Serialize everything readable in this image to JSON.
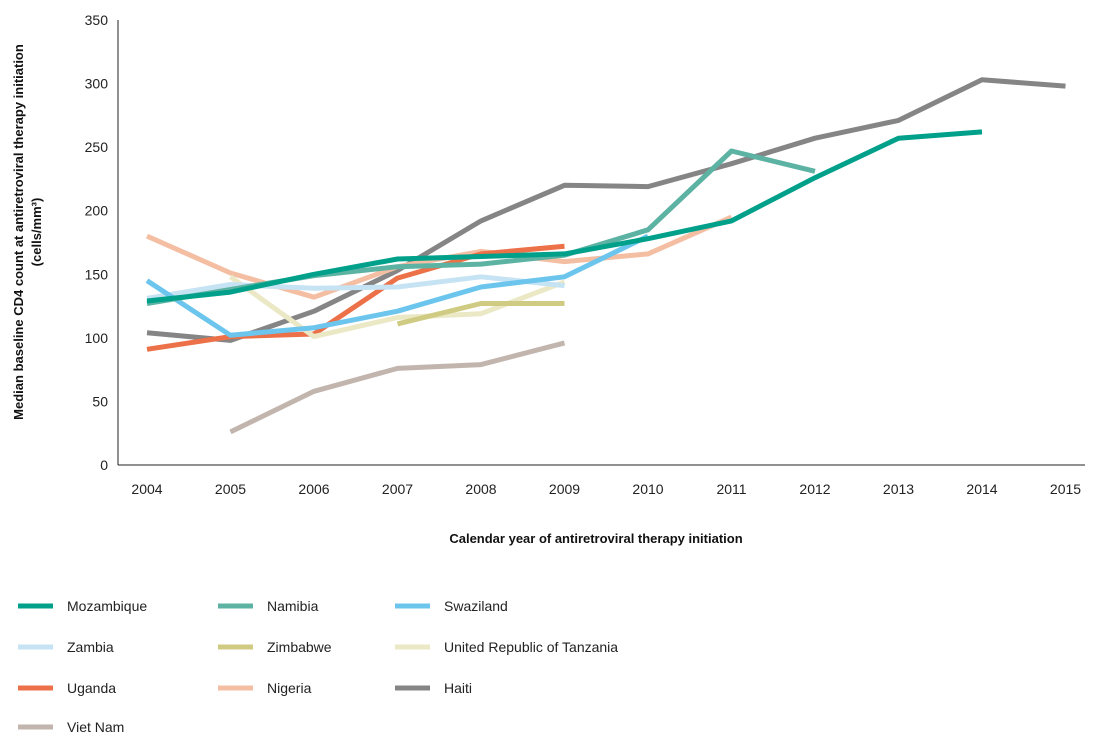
{
  "chart_data": {
    "type": "line",
    "xlabel": "Calendar year of antiretroviral therapy initiation",
    "ylabel": "Median baseline CD4 count at antiretroviral therapy initiation",
    "ylabel_unit": "(cells/mm³)",
    "xlim": [
      2004,
      2015
    ],
    "ylim": [
      0,
      350
    ],
    "x_ticks": [
      "2004",
      "2005",
      "2006",
      "2007",
      "2008",
      "2009",
      "2010",
      "2011",
      "2012",
      "2013",
      "2014",
      "2015"
    ],
    "y_ticks": [
      "0",
      "50",
      "100",
      "150",
      "200",
      "250",
      "300",
      "350"
    ],
    "grid": false,
    "legend_position": "bottom-left",
    "series": [
      {
        "name": "Mozambique",
        "color": "#00a08a",
        "points": [
          [
            2004,
            129
          ],
          [
            2005,
            136
          ],
          [
            2006,
            150
          ],
          [
            2007,
            162
          ],
          [
            2008,
            164
          ],
          [
            2009,
            166
          ],
          [
            2010,
            178
          ],
          [
            2011,
            192
          ],
          [
            2012,
            226
          ],
          [
            2013,
            257
          ],
          [
            2014,
            262
          ]
        ]
      },
      {
        "name": "Namibia",
        "color": "#5db3a3",
        "points": [
          [
            2004,
            127
          ],
          [
            2005,
            138
          ],
          [
            2006,
            149
          ],
          [
            2007,
            156
          ],
          [
            2008,
            158
          ],
          [
            2009,
            165
          ],
          [
            2010,
            185
          ],
          [
            2011,
            247
          ],
          [
            2012,
            231
          ]
        ]
      },
      {
        "name": "Swaziland",
        "color": "#6cc5ec",
        "points": [
          [
            2004,
            145
          ],
          [
            2005,
            102
          ],
          [
            2006,
            108
          ],
          [
            2007,
            121
          ],
          [
            2008,
            140
          ],
          [
            2009,
            148
          ],
          [
            2010,
            180
          ]
        ]
      },
      {
        "name": "Zambia",
        "color": "#c6e3f4",
        "points": [
          [
            2004,
            131
          ],
          [
            2005,
            142
          ],
          [
            2006,
            139
          ],
          [
            2007,
            140
          ],
          [
            2008,
            148
          ],
          [
            2009,
            141
          ]
        ]
      },
      {
        "name": "Zimbabwe",
        "color": "#d0cb82",
        "points": [
          [
            2007,
            111
          ],
          [
            2008,
            127
          ],
          [
            2009,
            127
          ]
        ]
      },
      {
        "name": "United Republic of Tanzania",
        "color": "#ebe8c5",
        "points": [
          [
            2005,
            148
          ],
          [
            2006,
            101
          ],
          [
            2007,
            116
          ],
          [
            2008,
            119
          ],
          [
            2009,
            144
          ]
        ]
      },
      {
        "name": "Uganda",
        "color": "#ec7048",
        "points": [
          [
            2004,
            91
          ],
          [
            2005,
            101
          ],
          [
            2006,
            103
          ],
          [
            2007,
            147
          ],
          [
            2008,
            166
          ],
          [
            2009,
            172
          ]
        ]
      },
      {
        "name": "Nigeria",
        "color": "#f4bea3",
        "points": [
          [
            2004,
            180
          ],
          [
            2005,
            151
          ],
          [
            2006,
            132
          ],
          [
            2007,
            156
          ],
          [
            2008,
            168
          ],
          [
            2009,
            160
          ],
          [
            2010,
            166
          ],
          [
            2011,
            195
          ]
        ]
      },
      {
        "name": "Haiti",
        "color": "#858585",
        "points": [
          [
            2004,
            104
          ],
          [
            2005,
            98
          ],
          [
            2006,
            121
          ],
          [
            2007,
            153
          ],
          [
            2008,
            192
          ],
          [
            2009,
            220
          ],
          [
            2010,
            219
          ],
          [
            2011,
            237
          ],
          [
            2012,
            257
          ],
          [
            2013,
            271
          ],
          [
            2014,
            303
          ],
          [
            2015,
            298
          ]
        ]
      },
      {
        "name": "Viet Nam",
        "color": "#c2b5ae",
        "points": [
          [
            2005,
            26
          ],
          [
            2006,
            58
          ],
          [
            2007,
            76
          ],
          [
            2008,
            79
          ],
          [
            2009,
            96
          ]
        ]
      }
    ]
  }
}
